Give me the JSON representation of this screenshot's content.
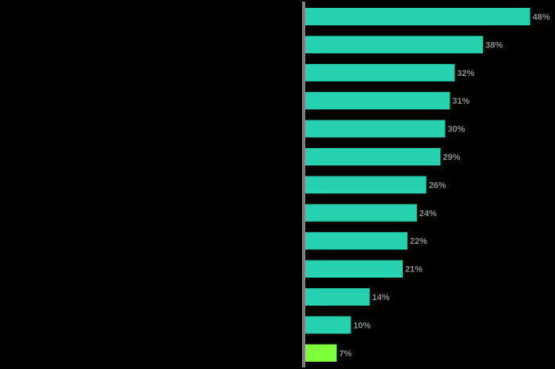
{
  "chart_data": {
    "type": "bar",
    "orientation": "horizontal",
    "title": "",
    "xlabel": "",
    "ylabel": "",
    "categories": [
      "",
      "",
      "",
      "",
      "",
      "",
      "",
      "",
      "",
      "",
      "",
      "",
      ""
    ],
    "values": [
      48,
      38,
      32,
      31,
      30,
      29,
      26,
      24,
      22,
      21,
      14,
      10,
      7
    ],
    "data_labels": [
      "48%",
      "38%",
      "32%",
      "31%",
      "30%",
      "29%",
      "26%",
      "24%",
      "22%",
      "21%",
      "14%",
      "10%",
      "7%"
    ],
    "xlim": [
      0,
      52
    ],
    "grid": false,
    "legend": "none",
    "colors": {
      "background": "#000000",
      "bar": "#26d2b0",
      "highlight_bar": "#7dfc3a",
      "axis": "#7f7f7f",
      "label": "#8a8f90"
    },
    "highlight_index": 12
  }
}
